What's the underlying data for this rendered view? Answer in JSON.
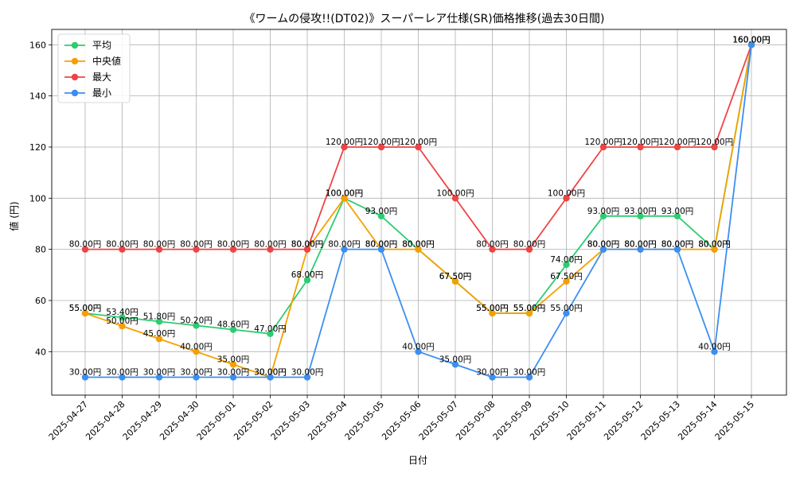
{
  "chart_data": {
    "type": "line",
    "title": "《ワームの侵攻!!(DT02)》スーパーレア仕様(SR)価格推移(過去30日間)",
    "xlabel": "日付",
    "ylabel": "値 (円)",
    "ylim": [
      23,
      166
    ],
    "yticks": [
      40,
      60,
      80,
      100,
      120,
      140,
      160
    ],
    "grid": true,
    "legend_position": "top-left",
    "categories": [
      "2025-04-27",
      "2025-04-28",
      "2025-04-29",
      "2025-04-30",
      "2025-05-01",
      "2025-05-02",
      "2025-05-03",
      "2025-05-04",
      "2025-05-05",
      "2025-05-06",
      "2025-05-07",
      "2025-05-08",
      "2025-05-09",
      "2025-05-10",
      "2025-05-11",
      "2025-05-12",
      "2025-05-13",
      "2025-05-14",
      "2025-05-15"
    ],
    "series": [
      {
        "name": "平均",
        "color": "#2ecc71",
        "values": [
          55.0,
          53.4,
          51.8,
          50.2,
          48.6,
          47.0,
          68.0,
          100.0,
          93.0,
          80.0,
          67.5,
          55.0,
          55.0,
          74.0,
          93.0,
          93.0,
          93.0,
          80.0,
          160.0
        ]
      },
      {
        "name": "中央値",
        "color": "#f5a000",
        "values": [
          55.0,
          50.0,
          45.0,
          40.0,
          35.0,
          30.0,
          80.0,
          100.0,
          80.0,
          80.0,
          67.5,
          55.0,
          55.0,
          67.5,
          80.0,
          80.0,
          80.0,
          80.0,
          160.0
        ]
      },
      {
        "name": "最大",
        "color": "#ef4444",
        "values": [
          80.0,
          80.0,
          80.0,
          80.0,
          80.0,
          80.0,
          80.0,
          120.0,
          120.0,
          120.0,
          100.0,
          80.0,
          80.0,
          100.0,
          120.0,
          120.0,
          120.0,
          120.0,
          160.0
        ]
      },
      {
        "name": "最小",
        "color": "#3b8ff0",
        "values": [
          30.0,
          30.0,
          30.0,
          30.0,
          30.0,
          30.0,
          30.0,
          80.0,
          80.0,
          40.0,
          35.0,
          30.0,
          30.0,
          55.0,
          80.0,
          80.0,
          80.0,
          40.0,
          160.0
        ]
      }
    ],
    "value_suffix": "円"
  }
}
